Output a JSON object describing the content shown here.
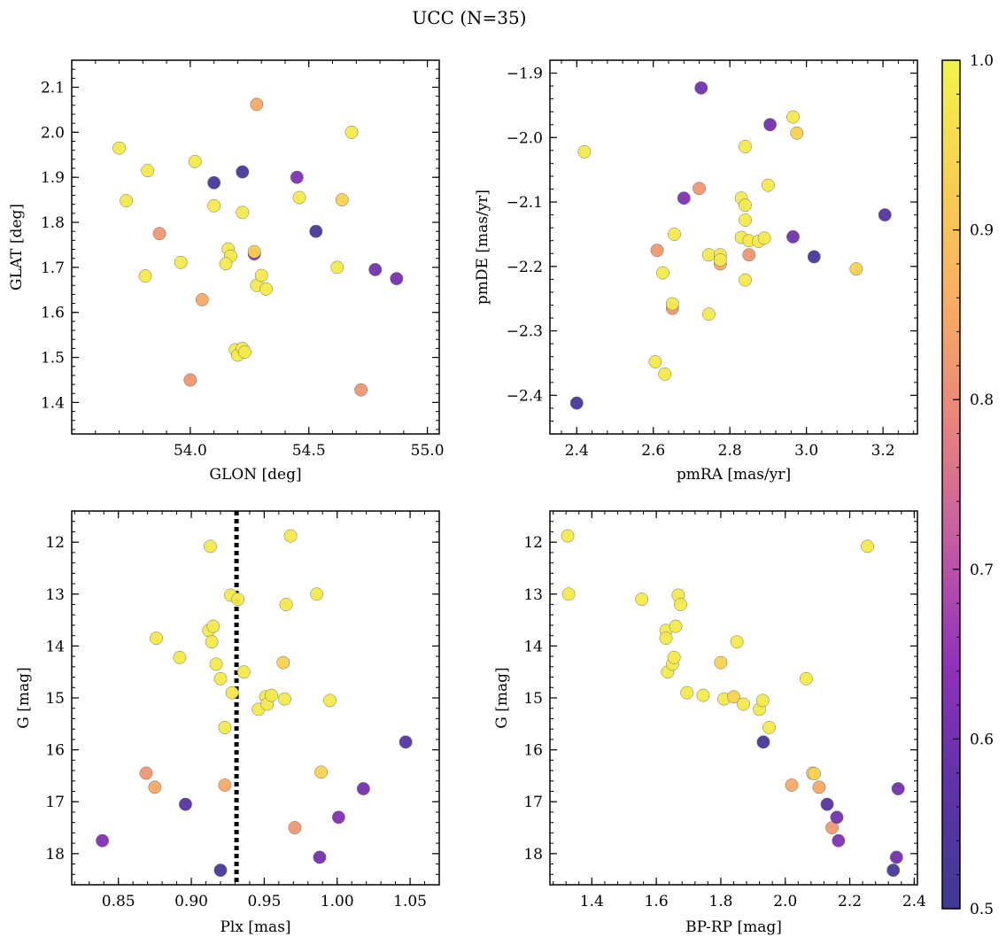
{
  "figure_title": "UCC (N=35)",
  "colorbar": {
    "range": [
      0.5,
      1.0
    ],
    "ticks": [
      0.5,
      0.6,
      0.7,
      0.8,
      0.9,
      1.0
    ],
    "tick_labels": [
      "0.5",
      "0.6",
      "0.7",
      "0.8",
      "0.9",
      "1.0"
    ],
    "colormap": "plasma",
    "color_stops": [
      "#3e3a93",
      "#5e33a7",
      "#8f31ba",
      "#c45aa4",
      "#e8837d",
      "#f8ad63",
      "#f7d04f",
      "#f2f44a"
    ]
  },
  "chart_data": [
    {
      "type": "scatter",
      "xlabel": "GLON [deg]",
      "ylabel": "GLAT [deg]",
      "xlim": [
        53.5,
        55.05
      ],
      "ylim": [
        1.33,
        2.16
      ],
      "xticks": [
        54.0,
        54.5,
        55.0
      ],
      "xtick_labels": [
        "54.0",
        "54.5",
        "55.0"
      ],
      "yticks": [
        1.4,
        1.5,
        1.6,
        1.7,
        1.8,
        1.9,
        2.0,
        2.1
      ],
      "ytick_labels": [
        "1.4",
        "1.5",
        "1.6",
        "1.7",
        "1.8",
        "1.9",
        "2.0",
        "2.1"
      ],
      "points": [
        {
          "x": 53.7,
          "y": 1.965,
          "c": 0.98
        },
        {
          "x": 53.73,
          "y": 1.848,
          "c": 0.98
        },
        {
          "x": 53.82,
          "y": 1.915,
          "c": 0.98
        },
        {
          "x": 53.81,
          "y": 1.681,
          "c": 0.98
        },
        {
          "x": 53.87,
          "y": 1.775,
          "c": 0.82
        },
        {
          "x": 53.96,
          "y": 1.711,
          "c": 0.98
        },
        {
          "x": 54.02,
          "y": 1.935,
          "c": 0.98
        },
        {
          "x": 54.05,
          "y": 1.628,
          "c": 0.85
        },
        {
          "x": 54.1,
          "y": 1.888,
          "c": 0.52
        },
        {
          "x": 54.1,
          "y": 1.837,
          "c": 0.98
        },
        {
          "x": 54.0,
          "y": 1.45,
          "c": 0.82
        },
        {
          "x": 54.22,
          "y": 1.912,
          "c": 0.52
        },
        {
          "x": 54.22,
          "y": 1.822,
          "c": 0.98
        },
        {
          "x": 54.16,
          "y": 1.741,
          "c": 0.98
        },
        {
          "x": 54.17,
          "y": 1.725,
          "c": 0.98
        },
        {
          "x": 54.15,
          "y": 1.708,
          "c": 0.98
        },
        {
          "x": 54.27,
          "y": 1.73,
          "c": 0.62
        },
        {
          "x": 54.27,
          "y": 1.735,
          "c": 0.93
        },
        {
          "x": 54.28,
          "y": 1.66,
          "c": 0.98
        },
        {
          "x": 54.3,
          "y": 1.682,
          "c": 0.98
        },
        {
          "x": 54.32,
          "y": 1.652,
          "c": 0.98
        },
        {
          "x": 54.19,
          "y": 1.517,
          "c": 0.98
        },
        {
          "x": 54.2,
          "y": 1.505,
          "c": 0.98
        },
        {
          "x": 54.22,
          "y": 1.52,
          "c": 0.98
        },
        {
          "x": 54.23,
          "y": 1.512,
          "c": 0.98
        },
        {
          "x": 54.28,
          "y": 2.062,
          "c": 0.85
        },
        {
          "x": 54.45,
          "y": 1.9,
          "c": 0.62
        },
        {
          "x": 54.46,
          "y": 1.855,
          "c": 0.98
        },
        {
          "x": 54.53,
          "y": 1.78,
          "c": 0.52
        },
        {
          "x": 54.62,
          "y": 1.7,
          "c": 0.98
        },
        {
          "x": 54.64,
          "y": 1.85,
          "c": 0.93
        },
        {
          "x": 54.68,
          "y": 2.0,
          "c": 0.98
        },
        {
          "x": 54.72,
          "y": 1.428,
          "c": 0.82
        },
        {
          "x": 54.78,
          "y": 1.695,
          "c": 0.6
        },
        {
          "x": 54.87,
          "y": 1.675,
          "c": 0.6
        }
      ]
    },
    {
      "type": "scatter",
      "xlabel": "pmRA [mas/yr]",
      "ylabel": "pmDE [mas/yr]",
      "xlim": [
        2.33,
        3.29
      ],
      "ylim": [
        -2.46,
        -1.88
      ],
      "xticks": [
        2.4,
        2.6,
        2.8,
        3.0,
        3.2
      ],
      "xtick_labels": [
        "2.4",
        "2.6",
        "2.8",
        "3.0",
        "3.2"
      ],
      "yticks": [
        -2.4,
        -2.3,
        -2.2,
        -2.1,
        -2.0,
        -1.9
      ],
      "ytick_labels": [
        "−2.4",
        "−2.3",
        "−2.2",
        "−2.1",
        "−2.0",
        "−1.9"
      ],
      "points": [
        {
          "x": 2.4,
          "y": -2.412,
          "c": 0.52
        },
        {
          "x": 2.42,
          "y": -2.022,
          "c": 0.98
        },
        {
          "x": 2.605,
          "y": -2.348,
          "c": 0.98
        },
        {
          "x": 2.61,
          "y": -2.175,
          "c": 0.82
        },
        {
          "x": 2.625,
          "y": -2.21,
          "c": 0.98
        },
        {
          "x": 2.63,
          "y": -2.367,
          "c": 0.98
        },
        {
          "x": 2.65,
          "y": -2.265,
          "c": 0.82
        },
        {
          "x": 2.65,
          "y": -2.258,
          "c": 0.98
        },
        {
          "x": 2.655,
          "y": -2.15,
          "c": 0.98
        },
        {
          "x": 2.68,
          "y": -2.094,
          "c": 0.62
        },
        {
          "x": 2.72,
          "y": -2.079,
          "c": 0.82
        },
        {
          "x": 2.725,
          "y": -1.923,
          "c": 0.6
        },
        {
          "x": 2.745,
          "y": -2.274,
          "c": 0.98
        },
        {
          "x": 2.745,
          "y": -2.182,
          "c": 0.98
        },
        {
          "x": 2.775,
          "y": -2.196,
          "c": 0.85
        },
        {
          "x": 2.775,
          "y": -2.182,
          "c": 0.98
        },
        {
          "x": 2.775,
          "y": -2.19,
          "c": 0.98
        },
        {
          "x": 2.83,
          "y": -2.094,
          "c": 0.98
        },
        {
          "x": 2.83,
          "y": -2.155,
          "c": 0.98
        },
        {
          "x": 2.84,
          "y": -2.014,
          "c": 0.98
        },
        {
          "x": 2.84,
          "y": -2.105,
          "c": 0.98
        },
        {
          "x": 2.84,
          "y": -2.128,
          "c": 0.98
        },
        {
          "x": 2.84,
          "y": -2.221,
          "c": 0.98
        },
        {
          "x": 2.85,
          "y": -2.182,
          "c": 0.82
        },
        {
          "x": 2.85,
          "y": -2.16,
          "c": 0.98
        },
        {
          "x": 2.875,
          "y": -2.161,
          "c": 0.98
        },
        {
          "x": 2.89,
          "y": -2.156,
          "c": 0.98
        },
        {
          "x": 2.9,
          "y": -2.074,
          "c": 0.98
        },
        {
          "x": 2.905,
          "y": -1.98,
          "c": 0.6
        },
        {
          "x": 2.965,
          "y": -2.154,
          "c": 0.6
        },
        {
          "x": 2.965,
          "y": -1.968,
          "c": 0.98
        },
        {
          "x": 2.975,
          "y": -1.993,
          "c": 0.93
        },
        {
          "x": 3.02,
          "y": -2.185,
          "c": 0.52
        },
        {
          "x": 3.13,
          "y": -2.204,
          "c": 0.93
        },
        {
          "x": 3.205,
          "y": -2.12,
          "c": 0.55
        }
      ]
    },
    {
      "type": "scatter",
      "xlabel": "Plx [mas]",
      "ylabel": "G [mag]",
      "xlim": [
        0.818,
        1.07
      ],
      "ylim": [
        18.6,
        11.4
      ],
      "y_inverted": true,
      "xticks": [
        0.85,
        0.9,
        0.95,
        1.0,
        1.05
      ],
      "xtick_labels": [
        "0.85",
        "0.90",
        "0.95",
        "1.00",
        "1.05"
      ],
      "yticks": [
        12,
        13,
        14,
        15,
        16,
        17,
        18
      ],
      "ytick_labels": [
        "12",
        "13",
        "14",
        "15",
        "16",
        "17",
        "18"
      ],
      "vline": {
        "x": 0.931,
        "style": "dotted",
        "color": "#000000"
      },
      "points": [
        {
          "x": 0.839,
          "y": 17.75,
          "c": 0.62
        },
        {
          "x": 0.869,
          "y": 16.45,
          "c": 0.82
        },
        {
          "x": 0.875,
          "y": 16.72,
          "c": 0.85
        },
        {
          "x": 0.876,
          "y": 13.85,
          "c": 0.98
        },
        {
          "x": 0.892,
          "y": 14.22,
          "c": 0.98
        },
        {
          "x": 0.896,
          "y": 17.05,
          "c": 0.55
        },
        {
          "x": 0.912,
          "y": 13.7,
          "c": 0.98
        },
        {
          "x": 0.913,
          "y": 12.08,
          "c": 0.98
        },
        {
          "x": 0.914,
          "y": 13.92,
          "c": 0.98
        },
        {
          "x": 0.915,
          "y": 13.62,
          "c": 0.98
        },
        {
          "x": 0.917,
          "y": 14.35,
          "c": 0.98
        },
        {
          "x": 0.92,
          "y": 14.63,
          "c": 0.98
        },
        {
          "x": 0.92,
          "y": 18.32,
          "c": 0.52
        },
        {
          "x": 0.923,
          "y": 16.68,
          "c": 0.85
        },
        {
          "x": 0.923,
          "y": 15.57,
          "c": 0.98
        },
        {
          "x": 0.927,
          "y": 13.02,
          "c": 0.98
        },
        {
          "x": 0.928,
          "y": 14.9,
          "c": 0.98
        },
        {
          "x": 0.932,
          "y": 13.1,
          "c": 0.98
        },
        {
          "x": 0.936,
          "y": 14.5,
          "c": 0.98
        },
        {
          "x": 0.946,
          "y": 15.22,
          "c": 0.98
        },
        {
          "x": 0.951,
          "y": 14.98,
          "c": 0.98
        },
        {
          "x": 0.952,
          "y": 15.12,
          "c": 0.98
        },
        {
          "x": 0.955,
          "y": 14.95,
          "c": 0.98
        },
        {
          "x": 0.963,
          "y": 14.32,
          "c": 0.93
        },
        {
          "x": 0.964,
          "y": 15.02,
          "c": 0.98
        },
        {
          "x": 0.965,
          "y": 13.2,
          "c": 0.98
        },
        {
          "x": 0.968,
          "y": 11.88,
          "c": 0.98
        },
        {
          "x": 0.971,
          "y": 17.5,
          "c": 0.82
        },
        {
          "x": 0.986,
          "y": 13.0,
          "c": 0.98
        },
        {
          "x": 0.988,
          "y": 18.07,
          "c": 0.6
        },
        {
          "x": 0.989,
          "y": 16.43,
          "c": 0.93
        },
        {
          "x": 0.995,
          "y": 15.05,
          "c": 0.98
        },
        {
          "x": 1.001,
          "y": 17.3,
          "c": 0.62
        },
        {
          "x": 1.018,
          "y": 16.75,
          "c": 0.6
        },
        {
          "x": 1.047,
          "y": 15.85,
          "c": 0.55
        }
      ]
    },
    {
      "type": "scatter",
      "xlabel": "BP-RP [mag]",
      "ylabel": "G [mag]",
      "xlim": [
        1.27,
        2.41
      ],
      "ylim": [
        18.6,
        11.4
      ],
      "y_inverted": true,
      "xticks": [
        1.4,
        1.6,
        1.8,
        2.0,
        2.2,
        2.4
      ],
      "xtick_labels": [
        "1.4",
        "1.6",
        "1.8",
        "2.0",
        "2.2",
        "2.4"
      ],
      "yticks": [
        12,
        13,
        14,
        15,
        16,
        17,
        18
      ],
      "ytick_labels": [
        "12",
        "13",
        "14",
        "15",
        "16",
        "17",
        "18"
      ],
      "points": [
        {
          "x": 1.325,
          "y": 11.88,
          "c": 0.98
        },
        {
          "x": 1.328,
          "y": 13.0,
          "c": 0.98
        },
        {
          "x": 1.555,
          "y": 13.1,
          "c": 0.98
        },
        {
          "x": 1.63,
          "y": 13.7,
          "c": 0.98
        },
        {
          "x": 1.63,
          "y": 13.85,
          "c": 0.98
        },
        {
          "x": 1.635,
          "y": 14.5,
          "c": 0.98
        },
        {
          "x": 1.65,
          "y": 14.35,
          "c": 0.98
        },
        {
          "x": 1.655,
          "y": 14.22,
          "c": 0.98
        },
        {
          "x": 1.66,
          "y": 13.62,
          "c": 0.98
        },
        {
          "x": 1.668,
          "y": 13.02,
          "c": 0.98
        },
        {
          "x": 1.675,
          "y": 13.2,
          "c": 0.98
        },
        {
          "x": 1.695,
          "y": 14.9,
          "c": 0.98
        },
        {
          "x": 1.745,
          "y": 14.95,
          "c": 0.98
        },
        {
          "x": 1.8,
          "y": 14.32,
          "c": 0.93
        },
        {
          "x": 1.81,
          "y": 15.02,
          "c": 0.98
        },
        {
          "x": 1.84,
          "y": 14.98,
          "c": 0.93
        },
        {
          "x": 1.85,
          "y": 13.92,
          "c": 0.98
        },
        {
          "x": 1.87,
          "y": 15.12,
          "c": 0.98
        },
        {
          "x": 1.92,
          "y": 15.22,
          "c": 0.98
        },
        {
          "x": 1.93,
          "y": 15.05,
          "c": 0.98
        },
        {
          "x": 1.932,
          "y": 15.85,
          "c": 0.52
        },
        {
          "x": 1.95,
          "y": 15.57,
          "c": 0.98
        },
        {
          "x": 2.02,
          "y": 16.68,
          "c": 0.85
        },
        {
          "x": 2.065,
          "y": 14.63,
          "c": 0.98
        },
        {
          "x": 2.085,
          "y": 16.45,
          "c": 0.93
        },
        {
          "x": 2.09,
          "y": 16.46,
          "c": 0.93
        },
        {
          "x": 2.105,
          "y": 16.72,
          "c": 0.85
        },
        {
          "x": 2.13,
          "y": 17.05,
          "c": 0.55
        },
        {
          "x": 2.145,
          "y": 17.5,
          "c": 0.82
        },
        {
          "x": 2.16,
          "y": 17.3,
          "c": 0.6
        },
        {
          "x": 2.165,
          "y": 17.75,
          "c": 0.62
        },
        {
          "x": 2.255,
          "y": 12.08,
          "c": 0.98
        },
        {
          "x": 2.335,
          "y": 18.32,
          "c": 0.52
        },
        {
          "x": 2.345,
          "y": 18.07,
          "c": 0.6
        },
        {
          "x": 2.35,
          "y": 16.75,
          "c": 0.6
        }
      ]
    }
  ]
}
